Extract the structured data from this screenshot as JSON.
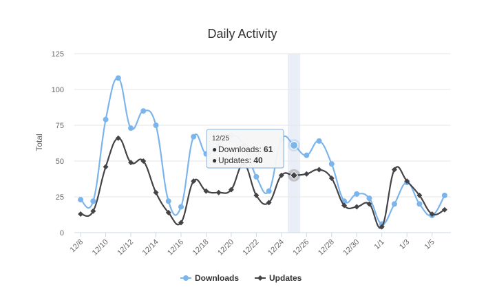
{
  "chart_data": {
    "type": "line",
    "title": "Daily Activity",
    "ylabel": "Total",
    "xlabel": "",
    "ylim": [
      0,
      125
    ],
    "yticks": [
      0,
      25,
      50,
      75,
      100,
      125
    ],
    "grid": true,
    "legend": "bottom-center",
    "categories": [
      "12/8",
      "12/9",
      "12/10",
      "12/11",
      "12/12",
      "12/13",
      "12/14",
      "12/15",
      "12/16",
      "12/17",
      "12/18",
      "12/19",
      "12/20",
      "12/21",
      "12/22",
      "12/23",
      "12/24",
      "12/25",
      "12/26",
      "12/27",
      "12/28",
      "12/29",
      "12/30",
      "12/31",
      "1/1",
      "1/2",
      "1/3",
      "1/4",
      "1/5",
      "1/6"
    ],
    "xtick_labels": [
      "12/8",
      "",
      "12/10",
      "",
      "12/12",
      "",
      "12/14",
      "",
      "12/16",
      "",
      "12/18",
      "",
      "12/20",
      "",
      "12/22",
      "",
      "12/24",
      "",
      "12/26",
      "",
      "12/28",
      "",
      "12/30",
      "",
      "1/1",
      "",
      "1/3",
      "",
      "1/5",
      ""
    ],
    "series": [
      {
        "name": "Downloads",
        "color": "#7cb5ec",
        "marker": "circle",
        "values": [
          23,
          22,
          79,
          108,
          73,
          85,
          75,
          22,
          18,
          67,
          55,
          61,
          68,
          61,
          39,
          29,
          65,
          61,
          54,
          64,
          48,
          22,
          27,
          24,
          6,
          20,
          35,
          20,
          12,
          26
        ]
      },
      {
        "name": "Updates",
        "color": "#434348",
        "marker": "diamond",
        "values": [
          13,
          15,
          46,
          66,
          49,
          50,
          28,
          14,
          7,
          36,
          29,
          28,
          30,
          48,
          26,
          21,
          40,
          40,
          41,
          44,
          38,
          19,
          18,
          20,
          4,
          44,
          36,
          26,
          13,
          16
        ]
      }
    ],
    "tooltip": {
      "category": "12/25",
      "header": "12/25",
      "rows": [
        {
          "series": "Downloads",
          "label": "Downloads: ",
          "value": "61"
        },
        {
          "series": "Updates",
          "label": "Updates: ",
          "value": "40"
        }
      ]
    }
  }
}
